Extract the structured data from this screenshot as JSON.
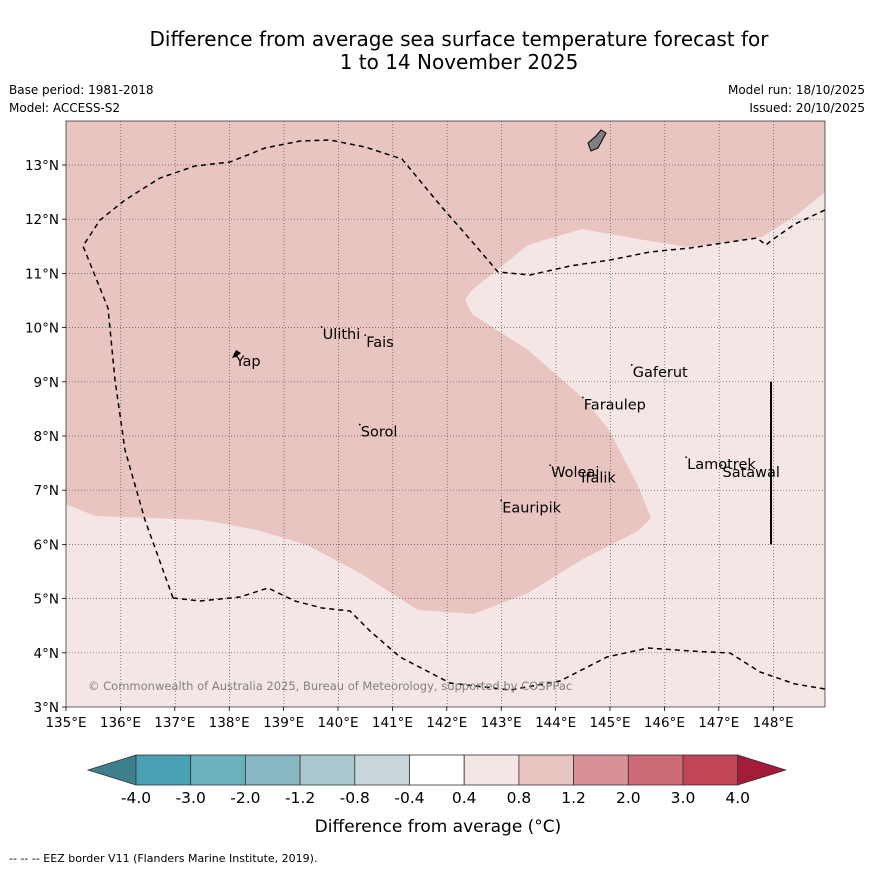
{
  "title": {
    "line1": "Difference from average sea surface temperature forecast for",
    "line2": "1 to 14 November 2025"
  },
  "meta": {
    "base_period": "Base period: 1981-2018",
    "model": "Model: ACCESS-S2",
    "model_run": "Model run: 18/10/2025",
    "issued": "Issued: 20/10/2025"
  },
  "map": {
    "lon_ticks": [
      "135°E",
      "136°E",
      "137°E",
      "138°E",
      "139°E",
      "140°E",
      "141°E",
      "142°E",
      "143°E",
      "144°E",
      "145°E",
      "146°E",
      "147°E",
      "148°E"
    ],
    "lat_ticks": [
      "3°N",
      "4°N",
      "5°N",
      "6°N",
      "7°N",
      "8°N",
      "9°N",
      "10°N",
      "11°N",
      "12°N",
      "13°N"
    ],
    "places": [
      {
        "name": "Yap",
        "lon": 138.1,
        "lat": 9.4
      },
      {
        "name": "Ulithi",
        "lon": 139.7,
        "lat": 9.9
      },
      {
        "name": "Fais",
        "lon": 140.5,
        "lat": 9.75
      },
      {
        "name": "Sorol",
        "lon": 140.4,
        "lat": 8.1
      },
      {
        "name": "Gaferut",
        "lon": 145.4,
        "lat": 9.2
      },
      {
        "name": "Faraulep",
        "lon": 144.5,
        "lat": 8.6
      },
      {
        "name": "Woleai",
        "lon": 143.9,
        "lat": 7.35
      },
      {
        "name": "Ifalik",
        "lon": 144.45,
        "lat": 7.25
      },
      {
        "name": "Lamotrek",
        "lon": 146.4,
        "lat": 7.5
      },
      {
        "name": "Satawal",
        "lon": 147.05,
        "lat": 7.35
      },
      {
        "name": "Eauripik",
        "lon": 143.0,
        "lat": 6.7
      }
    ],
    "copyright": "© Commonwealth of Australia 2025, Bureau of Meteorology, supported by COSPPac",
    "shading_colors": {
      "light": "#f4e6e5",
      "medium": "#e8c5c1"
    }
  },
  "colorbar": {
    "tick_labels": [
      "-4.0",
      "-3.0",
      "-2.0",
      "-1.2",
      "-0.8",
      "-0.4",
      "0.4",
      "0.8",
      "1.2",
      "2.0",
      "3.0",
      "4.0"
    ],
    "colors": [
      "#3d7f8c",
      "#49a2b3",
      "#6ab0bd",
      "#89b7c3",
      "#a9c9cf",
      "#c8d6db",
      "#ffffff",
      "#f4e6e5",
      "#e8c5c1",
      "#d99198",
      "#cc6b76",
      "#c04656",
      "#a51c3b"
    ],
    "label": "Difference from average (°C)"
  },
  "footnote": "--  --  -- EEZ border V11 (Flanders Marine Institute, 2019)."
}
